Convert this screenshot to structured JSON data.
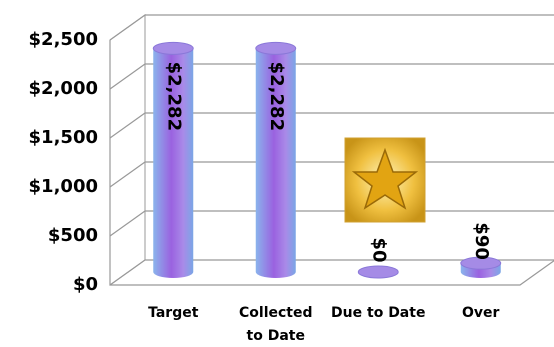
{
  "chart_data": {
    "type": "bar3d",
    "categories": [
      "Target",
      "Collected to Date",
      "Due to Date",
      "Over"
    ],
    "values": [
      2282,
      2282,
      0,
      90
    ],
    "value_labels": [
      "$2,282",
      "$2,282",
      "$0",
      "$90"
    ],
    "color": "#9a62e0",
    "ylim": [
      0,
      2500
    ],
    "yticks": [
      {
        "value": 0,
        "label": "$0"
      },
      {
        "value": 500,
        "label": "$500"
      },
      {
        "value": 1000,
        "label": "$1,000"
      },
      {
        "value": 1500,
        "label": "$1,500"
      },
      {
        "value": 2000,
        "label": "$2,000"
      },
      {
        "value": 2500,
        "label": "$2,500"
      }
    ],
    "grid": true
  }
}
